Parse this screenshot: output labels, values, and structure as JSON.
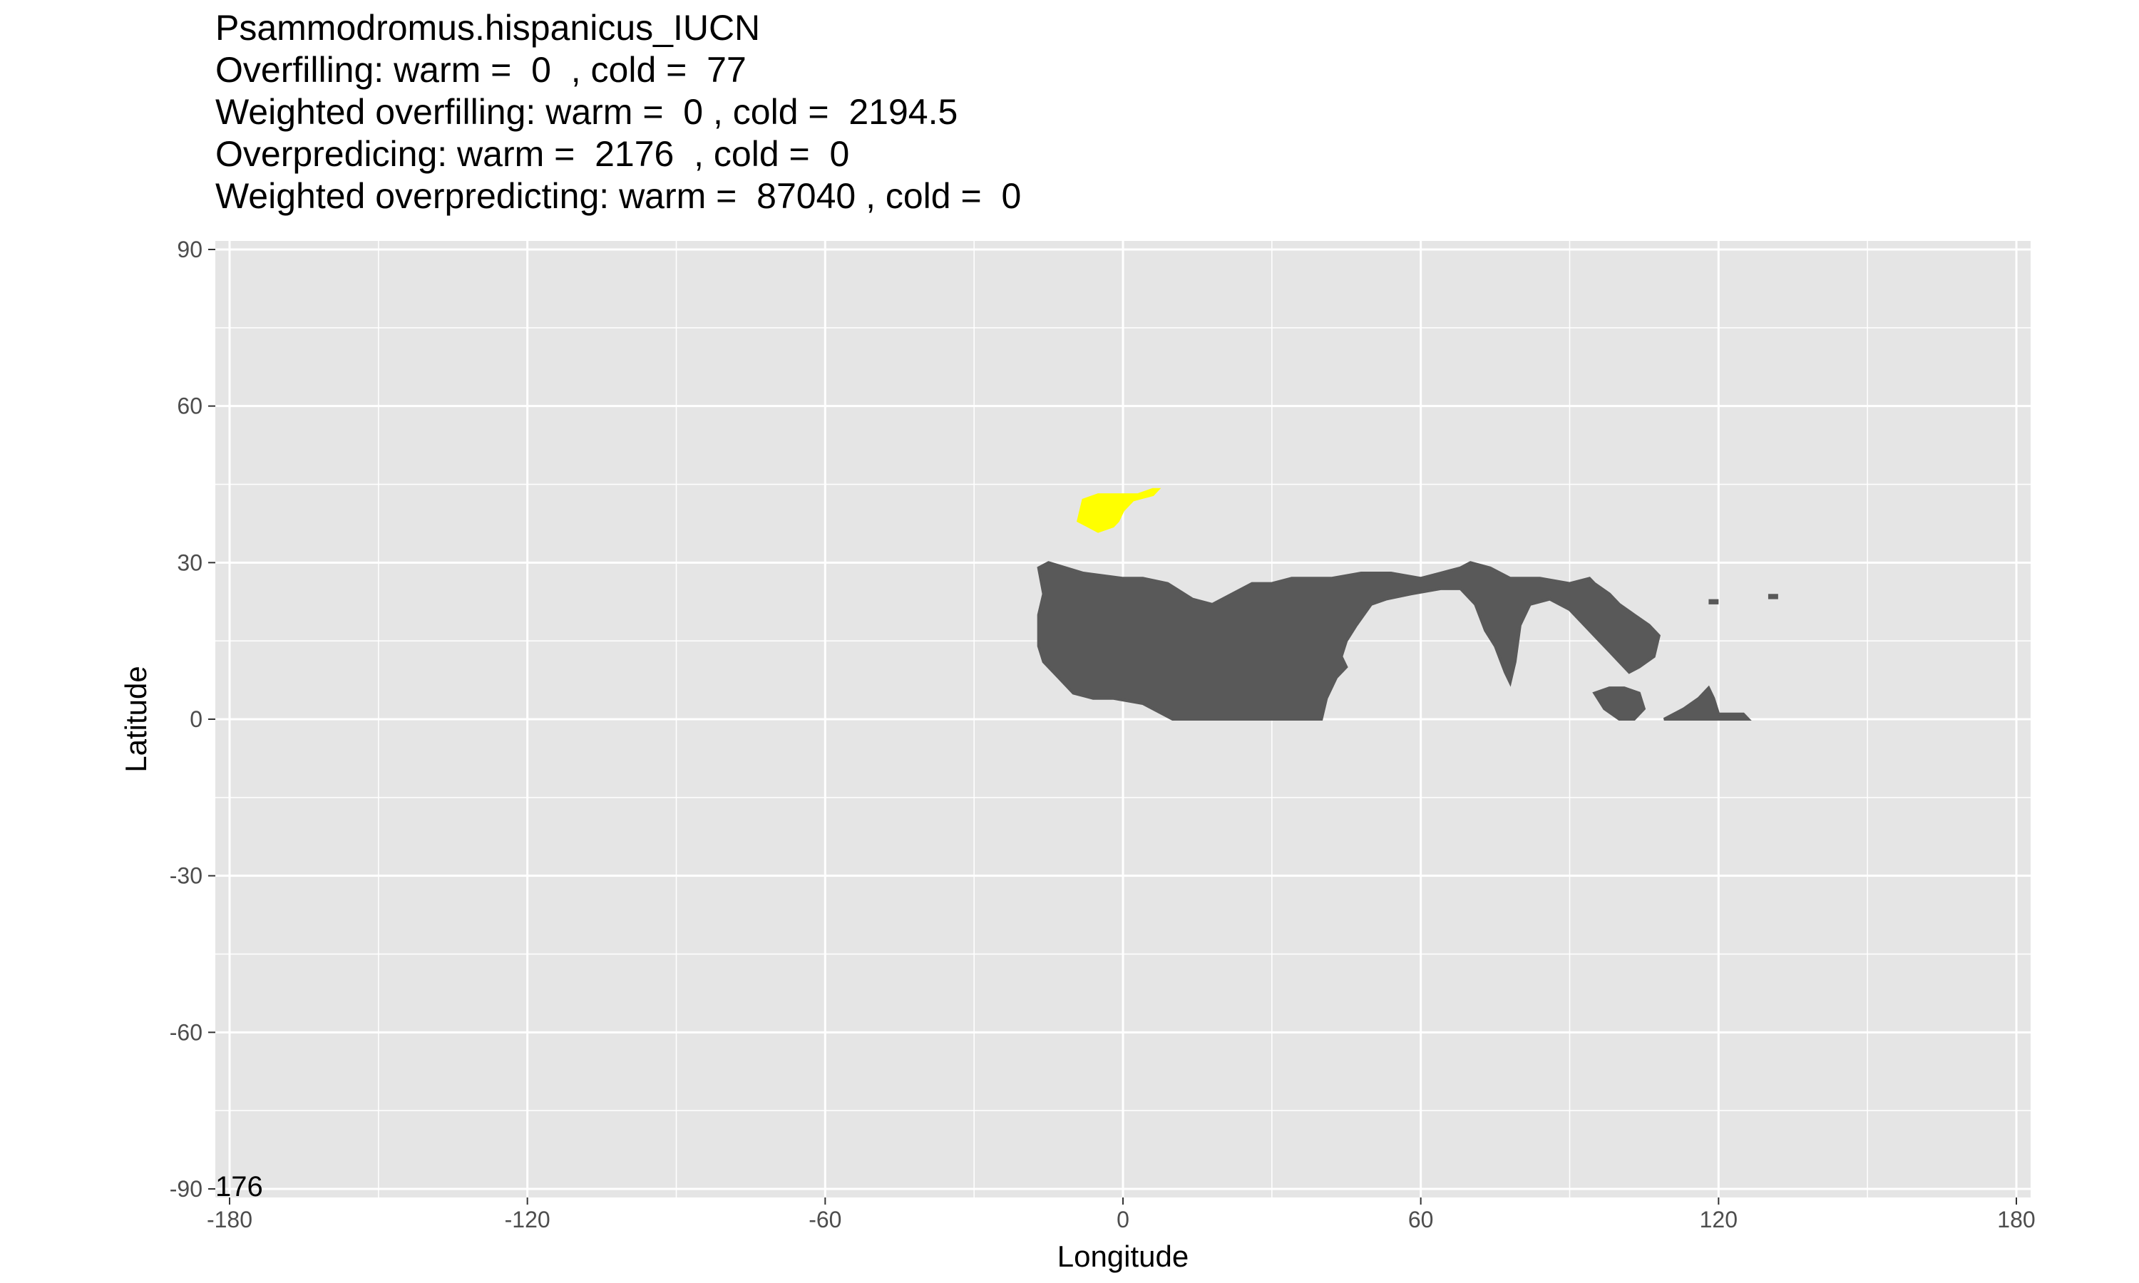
{
  "title_lines": [
    "Psammodromus.hispanicus_IUCN",
    "Overfilling: warm =  0  , cold =  77",
    "Weighted overfilling: warm =  0 , cold =  2194.5",
    "Overpredicing: warm =  2176  , cold =  0",
    "Weighted overpredicting: warm =  87040 , cold =  0"
  ],
  "corner_label": "176",
  "colors": {
    "panel_background": "#e5e5e5",
    "grid": "#ffffff",
    "range_region": "#595959",
    "overfill_region": "#ffff00"
  },
  "chart_data": {
    "type": "map",
    "xlabel": "Longitude",
    "ylabel": "Latitude",
    "xlim": [
      -180,
      180
    ],
    "ylim": [
      -90,
      90
    ],
    "x_ticks": [
      -180,
      -120,
      -60,
      0,
      60,
      120,
      180
    ],
    "y_ticks": [
      90,
      60,
      30,
      0,
      -30,
      -60,
      -90
    ],
    "grid": true,
    "regions": [
      {
        "category": "range_region",
        "color": "#595959",
        "polygon_lonlat": [
          [
            -17,
            29
          ],
          [
            -15,
            30
          ],
          [
            -8,
            28
          ],
          [
            0,
            27
          ],
          [
            4,
            27
          ],
          [
            9,
            26
          ],
          [
            14,
            23
          ],
          [
            18,
            22
          ],
          [
            22,
            24
          ],
          [
            26,
            26
          ],
          [
            30,
            26
          ],
          [
            34,
            27
          ],
          [
            37,
            27
          ],
          [
            42,
            27
          ],
          [
            48,
            28
          ],
          [
            54,
            28
          ],
          [
            60,
            27
          ],
          [
            64,
            28
          ],
          [
            68,
            29
          ],
          [
            70,
            30
          ],
          [
            74,
            29
          ],
          [
            78,
            27
          ],
          [
            84,
            27
          ],
          [
            90,
            26
          ],
          [
            94,
            27
          ],
          [
            95,
            26
          ],
          [
            98,
            24
          ],
          [
            100,
            22
          ],
          [
            103,
            20
          ],
          [
            106,
            18
          ],
          [
            108,
            16
          ],
          [
            107,
            12
          ],
          [
            104,
            10
          ],
          [
            102,
            9
          ],
          [
            100,
            11
          ],
          [
            98,
            13
          ],
          [
            96,
            15
          ],
          [
            94,
            17
          ],
          [
            92,
            19
          ],
          [
            90,
            21
          ],
          [
            86,
            23
          ],
          [
            82,
            22
          ],
          [
            80,
            18
          ],
          [
            79,
            11
          ],
          [
            78,
            7
          ],
          [
            77,
            9
          ],
          [
            75,
            14
          ],
          [
            73,
            17
          ],
          [
            71,
            22
          ],
          [
            68,
            25
          ],
          [
            64,
            25
          ],
          [
            58,
            24
          ],
          [
            53,
            23
          ],
          [
            50,
            22
          ],
          [
            47,
            18
          ],
          [
            45,
            15
          ],
          [
            44,
            12
          ],
          [
            45,
            10
          ],
          [
            43,
            8
          ],
          [
            41,
            4
          ],
          [
            40,
            0
          ],
          [
            30,
            0
          ],
          [
            20,
            0
          ],
          [
            10,
            0
          ],
          [
            4,
            3
          ],
          [
            -2,
            4
          ],
          [
            -6,
            4
          ],
          [
            -10,
            5
          ],
          [
            -13,
            8
          ],
          [
            -16,
            11
          ],
          [
            -17,
            14
          ],
          [
            -17,
            20
          ],
          [
            -16,
            24
          ]
        ]
      },
      {
        "category": "range_region",
        "color": "#595959",
        "polygon_lonlat": [
          [
            95,
            5
          ],
          [
            97,
            2
          ],
          [
            100,
            0
          ],
          [
            103,
            0
          ],
          [
            105,
            2
          ],
          [
            104,
            5
          ],
          [
            101,
            6
          ],
          [
            98,
            6
          ]
        ]
      },
      {
        "category": "range_region",
        "color": "#595959",
        "polygon_lonlat": [
          [
            109,
            0
          ],
          [
            113,
            2
          ],
          [
            116,
            4
          ],
          [
            118,
            6
          ],
          [
            119,
            4
          ],
          [
            120,
            1
          ],
          [
            125,
            1
          ],
          [
            126,
            0
          ],
          [
            118,
            0
          ]
        ]
      },
      {
        "category": "overfill_region",
        "color": "#ffff00",
        "polygon_lonlat": [
          [
            -9,
            38
          ],
          [
            -8,
            42
          ],
          [
            -5,
            43
          ],
          [
            -1,
            43
          ],
          [
            3,
            43
          ],
          [
            6,
            44
          ],
          [
            7,
            44
          ],
          [
            6,
            43
          ],
          [
            2,
            42
          ],
          [
            0,
            40
          ],
          [
            -1,
            38
          ],
          [
            -2,
            37
          ],
          [
            -5,
            36
          ],
          [
            -7,
            37
          ]
        ]
      }
    ],
    "small_cells": [
      {
        "category": "range_region",
        "lon": 118,
        "lat": 22
      },
      {
        "category": "range_region",
        "lon": 130,
        "lat": 23
      }
    ]
  }
}
